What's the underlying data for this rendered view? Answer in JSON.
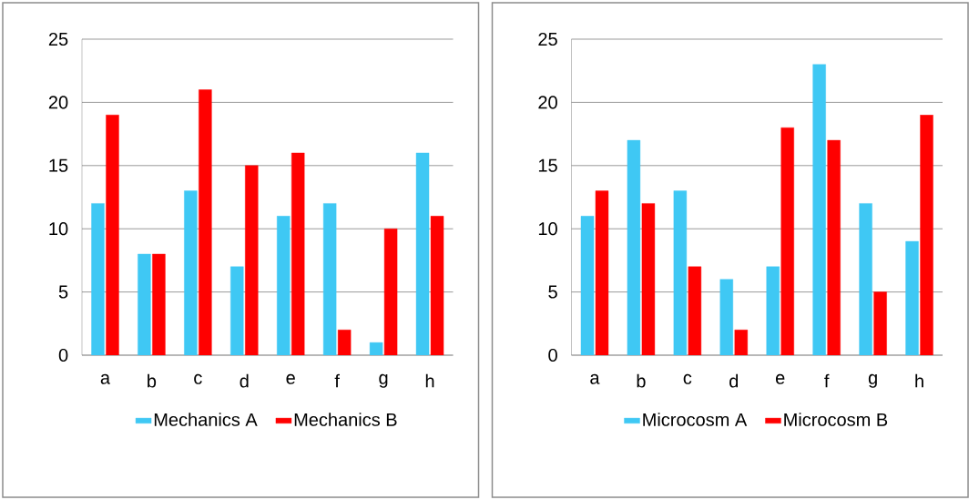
{
  "chart_data": [
    {
      "type": "bar",
      "categories": [
        "a",
        "b",
        "c",
        "d",
        "e",
        "f",
        "g",
        "h"
      ],
      "series": [
        {
          "name": "Mechanics A",
          "color": "#3fc8f4",
          "values": [
            12,
            8,
            13,
            7,
            11,
            12,
            1,
            16
          ]
        },
        {
          "name": "Mechanics B",
          "color": "#ff0000",
          "values": [
            19,
            8,
            21,
            15,
            16,
            2,
            10,
            11
          ]
        }
      ],
      "ylim": [
        0,
        25
      ],
      "yticks": [
        0,
        5,
        10,
        15,
        20,
        25
      ],
      "grid": "y",
      "legend": "bottom"
    },
    {
      "type": "bar",
      "categories": [
        "a",
        "b",
        "c",
        "d",
        "e",
        "f",
        "g",
        "h"
      ],
      "series": [
        {
          "name": "Microcosm A",
          "color": "#3fc8f4",
          "values": [
            11,
            17,
            13,
            6,
            7,
            23,
            12,
            9
          ]
        },
        {
          "name": "Microcosm B",
          "color": "#ff0000",
          "values": [
            13,
            12,
            7,
            2,
            18,
            17,
            5,
            19
          ]
        }
      ],
      "ylim": [
        0,
        25
      ],
      "yticks": [
        0,
        5,
        10,
        15,
        20,
        25
      ],
      "grid": "y",
      "legend": "bottom"
    }
  ]
}
